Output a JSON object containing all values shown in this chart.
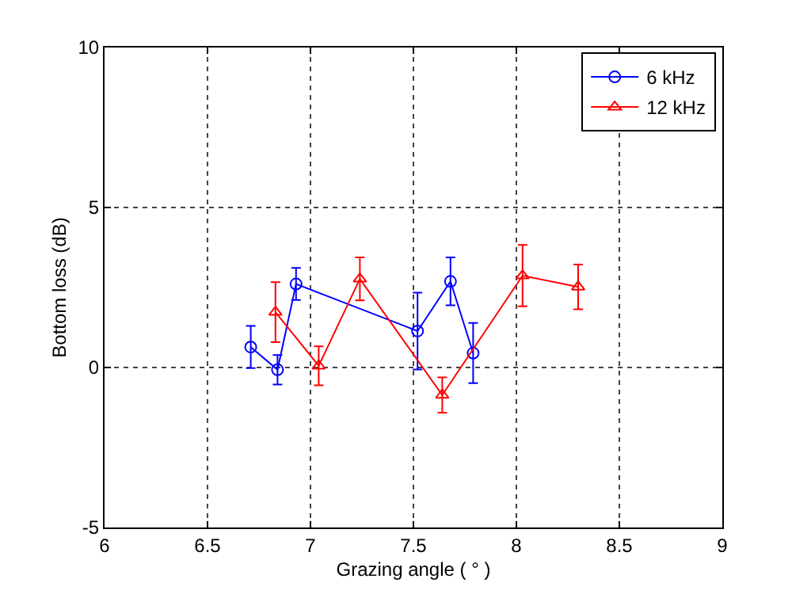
{
  "chart_data": {
    "type": "line",
    "xlabel": "Grazing angle ( ° )",
    "ylabel": "Bottom loss (dB)",
    "xlim": [
      6,
      9
    ],
    "xticks": [
      6,
      6.5,
      7,
      7.5,
      8,
      8.5,
      9
    ],
    "ylim": [
      -5,
      10
    ],
    "yticks": [
      -5,
      0,
      5,
      10
    ],
    "grid": true,
    "legend": "top right",
    "line_style": "solid",
    "series": [
      {
        "name": "6 kHz",
        "color": "#0000ff",
        "marker": "circle",
        "x": [
          6.71,
          6.84,
          6.93,
          7.52,
          7.68,
          7.79
        ],
        "values": [
          0.64,
          -0.07,
          2.61,
          1.14,
          2.69,
          0.45
        ],
        "errors": [
          0.66,
          0.46,
          0.5,
          1.2,
          0.75,
          0.94
        ]
      },
      {
        "name": "12 kHz",
        "color": "#ff0000",
        "marker": "triangle",
        "x": [
          6.83,
          7.04,
          7.24,
          7.64,
          8.03,
          8.3
        ],
        "values": [
          1.73,
          0.05,
          2.77,
          -0.86,
          2.87,
          2.52
        ],
        "errors": [
          0.94,
          0.61,
          0.67,
          0.55,
          0.96,
          0.7
        ]
      }
    ]
  }
}
